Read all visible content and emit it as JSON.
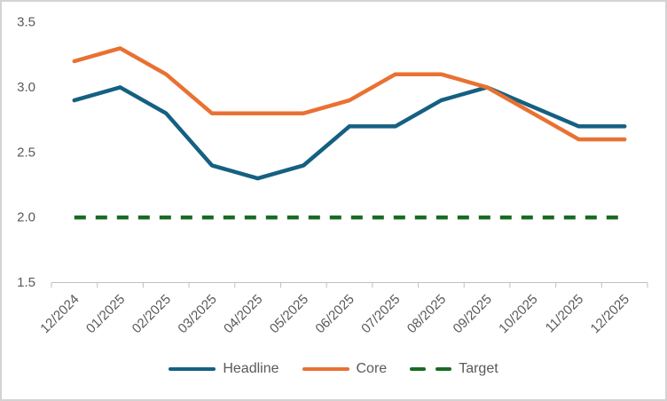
{
  "chart_data": {
    "type": "line",
    "title": "",
    "xlabel": "",
    "ylabel": "",
    "categories": [
      "12/2024",
      "01/2025",
      "02/2025",
      "03/2025",
      "04/2025",
      "05/2025",
      "06/2025",
      "07/2025",
      "08/2025",
      "09/2025",
      "10/2025",
      "11/2025",
      "12/2025"
    ],
    "series": [
      {
        "name": "Headline",
        "color": "#156082",
        "style": "solid",
        "values": [
          2.9,
          3.0,
          2.8,
          2.4,
          2.3,
          2.4,
          2.7,
          2.7,
          2.9,
          3.0,
          2.85,
          2.7,
          2.7
        ]
      },
      {
        "name": "Core",
        "color": "#E97132",
        "style": "solid",
        "values": [
          3.2,
          3.3,
          3.1,
          2.8,
          2.8,
          2.8,
          2.9,
          3.1,
          3.1,
          3.0,
          2.8,
          2.6,
          2.6
        ]
      },
      {
        "name": "Target",
        "color": "#196B24",
        "style": "dashed",
        "values": [
          2.0,
          2.0,
          2.0,
          2.0,
          2.0,
          2.0,
          2.0,
          2.0,
          2.0,
          2.0,
          2.0,
          2.0,
          2.0
        ]
      }
    ],
    "y_axis": {
      "min": 1.5,
      "max": 3.5,
      "tick_labels": [
        "3.5",
        "3.0",
        "2.5",
        "2.0",
        "1.5"
      ],
      "tick_values": [
        3.5,
        3.0,
        2.5,
        2.0,
        1.5
      ]
    },
    "x_label_rotation_deg": 45,
    "legend_position": "bottom",
    "grid": false
  },
  "colors": {
    "axis_line": "#BFBFBF",
    "tick_mark": "#BFBFBF",
    "label_text": "#595959",
    "frame_border": "#D3D3D3",
    "background": "#FFFFFF"
  }
}
